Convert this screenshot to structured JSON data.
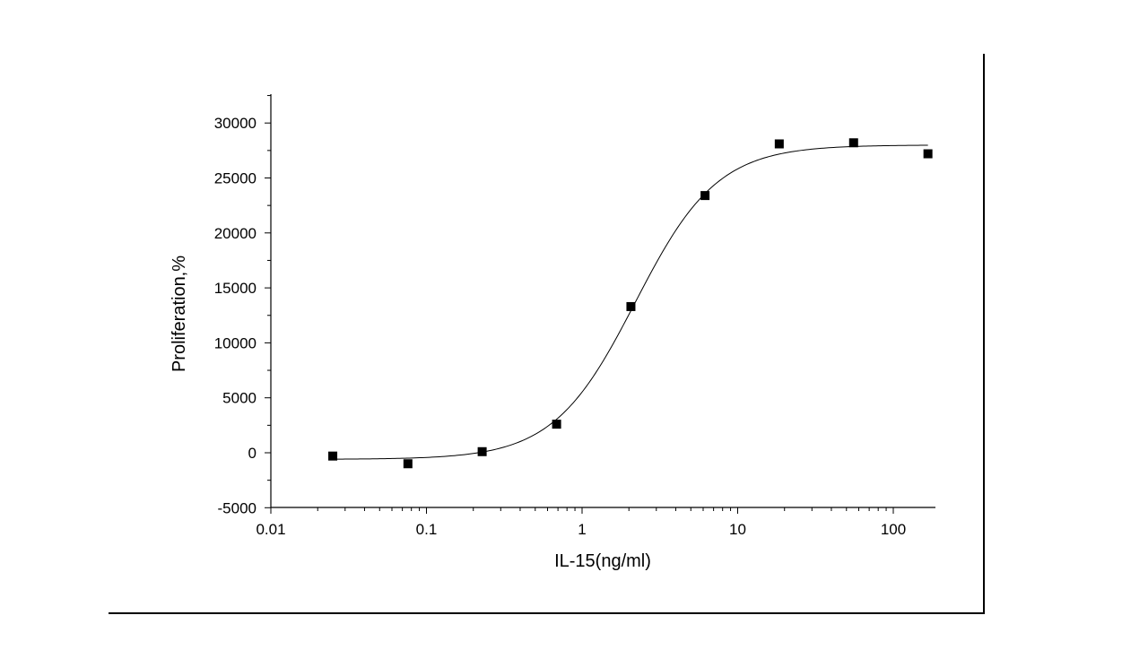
{
  "chart_data": {
    "type": "scatter",
    "title": "",
    "xlabel": "IL-15(ng/ml)",
    "ylabel": "Proliferation,%",
    "xscale": "log",
    "xlim": [
      0.01,
      180
    ],
    "ylim": [
      -5000,
      32500
    ],
    "xticks": [
      0.01,
      0.1,
      1,
      10,
      100
    ],
    "xtick_labels": [
      "0.01",
      "0.1",
      "1",
      "10",
      "100"
    ],
    "yticks": [
      -5000,
      0,
      5000,
      10000,
      15000,
      20000,
      25000,
      30000
    ],
    "ytick_labels": [
      "-5000",
      "0",
      "5000",
      "10000",
      "15000",
      "20000",
      "25000",
      "30000"
    ],
    "grid": false,
    "legend": "none",
    "marker": "square",
    "series": [
      {
        "x": [
          0.025,
          0.076,
          0.228,
          0.686,
          2.06,
          6.17,
          18.5,
          55.6,
          167
        ],
        "y": [
          -300,
          -1000,
          100,
          2600,
          13300,
          23400,
          28100,
          28200,
          27200
        ]
      }
    ],
    "fit_curve": {
      "model": "4PL",
      "bottom": -600,
      "top": 28000,
      "ec50": 2.2,
      "hill": 1.65
    },
    "colors": {
      "marker": "#000000",
      "line": "#000000",
      "axis": "#000000"
    }
  }
}
